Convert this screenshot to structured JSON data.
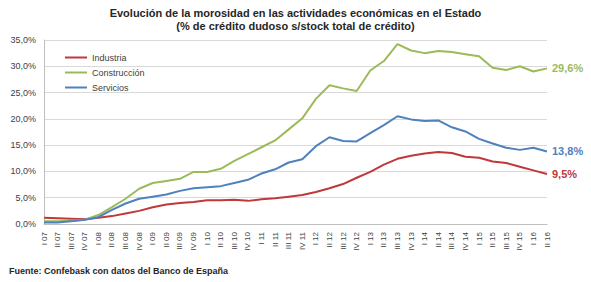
{
  "chart_data": {
    "type": "line",
    "title": "Evolución de la morosidad en las actividades económicas en el Estado",
    "subtitle": "(% de crédito dudoso s/stock total de crédito)",
    "source": "Fuente: Confebask con datos del Banco de España",
    "categories": [
      "I 07",
      "II 07",
      "III 07",
      "IV 07",
      "I 08",
      "II 08",
      "III 08",
      "IV 08",
      "I 09",
      "II 09",
      "III 09",
      "IV 09",
      "I 10",
      "II 10",
      "III 10",
      "IV 10",
      "I 11",
      "II 11",
      "III 11",
      "IV 11",
      "I 12",
      "II 12",
      "III 12",
      "IV 12",
      "I 13",
      "II 13",
      "III 13",
      "IV 13",
      "I 14",
      "II 14",
      "III 14",
      "IV 14",
      "I 15",
      "II 15",
      "III 15",
      "IV 15",
      "I 16",
      "II 16"
    ],
    "series": [
      {
        "name": "Industria",
        "color": "#c0383a",
        "values": [
          1.2,
          1.1,
          1.0,
          0.9,
          1.2,
          1.5,
          2.0,
          2.5,
          3.2,
          3.7,
          4.0,
          4.2,
          4.5,
          4.5,
          4.6,
          4.4,
          4.7,
          4.9,
          5.2,
          5.5,
          6.1,
          6.8,
          7.6,
          8.8,
          9.9,
          11.3,
          12.4,
          13.0,
          13.4,
          13.7,
          13.5,
          12.8,
          12.6,
          11.9,
          11.6,
          10.9,
          10.2,
          9.5
        ],
        "value_labels": [
          null,
          null,
          null,
          null,
          null,
          null,
          null,
          null,
          null,
          null,
          null,
          null,
          null,
          null,
          null,
          null,
          null,
          null,
          null,
          null,
          null,
          null,
          null,
          null,
          null,
          null,
          null,
          null,
          null,
          null,
          null,
          null,
          null,
          null,
          null,
          null,
          null,
          "9,5%"
        ]
      },
      {
        "name": "Construcción",
        "color": "#9bbb59",
        "values": [
          0.5,
          0.5,
          0.6,
          0.8,
          1.7,
          3.2,
          4.8,
          6.7,
          7.8,
          8.2,
          8.6,
          9.9,
          9.9,
          10.5,
          12.0,
          13.3,
          14.6,
          15.9,
          18.0,
          20.1,
          23.8,
          26.4,
          25.8,
          25.3,
          29.2,
          31.0,
          34.2,
          33.0,
          32.5,
          32.9,
          32.7,
          32.3,
          31.9,
          29.7,
          29.3,
          30.0,
          29.0,
          29.6
        ],
        "value_labels": [
          null,
          null,
          null,
          null,
          null,
          null,
          null,
          null,
          null,
          null,
          null,
          null,
          null,
          null,
          null,
          null,
          null,
          null,
          null,
          null,
          null,
          null,
          null,
          null,
          null,
          null,
          null,
          null,
          null,
          null,
          null,
          null,
          null,
          null,
          null,
          null,
          null,
          "29,6%"
        ]
      },
      {
        "name": "Servicios",
        "color": "#4f81bd",
        "values": [
          0.3,
          0.3,
          0.5,
          0.8,
          1.3,
          2.7,
          3.9,
          4.8,
          5.2,
          5.6,
          6.3,
          6.8,
          7.0,
          7.2,
          7.8,
          8.4,
          9.6,
          10.4,
          11.7,
          12.3,
          14.8,
          16.5,
          15.8,
          15.7,
          17.3,
          18.8,
          20.5,
          19.9,
          19.6,
          19.7,
          18.4,
          17.6,
          16.2,
          15.3,
          14.5,
          14.1,
          14.5,
          13.8
        ],
        "value_labels": [
          null,
          null,
          null,
          null,
          null,
          null,
          null,
          null,
          null,
          null,
          null,
          null,
          null,
          null,
          null,
          null,
          null,
          null,
          null,
          null,
          null,
          null,
          null,
          null,
          null,
          null,
          null,
          null,
          null,
          null,
          null,
          null,
          null,
          null,
          null,
          null,
          null,
          "13,8%"
        ]
      }
    ],
    "ylim": [
      0,
      35
    ],
    "yticks": [
      {
        "value": 0,
        "label": "0,0%"
      },
      {
        "value": 5,
        "label": "5,0%"
      },
      {
        "value": 10,
        "label": "10,0%"
      },
      {
        "value": 15,
        "label": "15,0%"
      },
      {
        "value": 20,
        "label": "20,0%"
      },
      {
        "value": 25,
        "label": "25,0%"
      },
      {
        "value": 30,
        "label": "30,0%"
      },
      {
        "value": 35,
        "label": "35,0%"
      }
    ],
    "grid": true,
    "legend": "top-left"
  }
}
